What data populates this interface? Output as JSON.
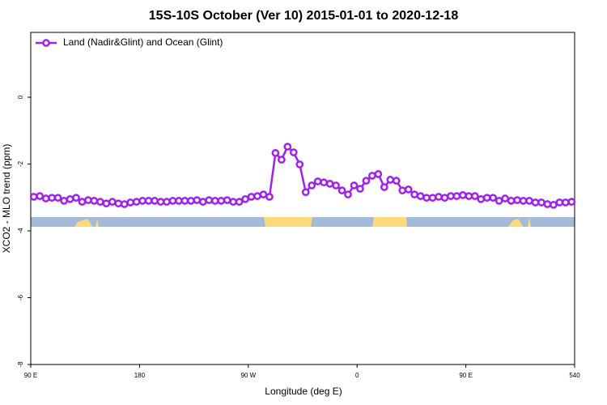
{
  "chart_data": {
    "type": "line",
    "title": "15S-10S October (Ver 10)   2015-01-01 to 2020-12-18",
    "x_label": "Longitude (deg E)",
    "y_label": "XCO2 - MLO trend (ppm)",
    "xlim": [
      90,
      540
    ],
    "xticks": [
      {
        "value": 90,
        "label": "90 E"
      },
      180,
      {
        "value": 270,
        "label": "90 W"
      },
      {
        "value": 360,
        "label": "0"
      },
      {
        "value": 450,
        "label": "90 E"
      },
      540
    ],
    "ylim": [
      -8,
      1.94
    ],
    "yticks": [
      -8,
      -6,
      -4,
      -2,
      0
    ],
    "legend": "top-left",
    "x": [
      92.5,
      97.5,
      102.5,
      107.5,
      112.5,
      117.5,
      122.5,
      127.5,
      132.5,
      137.5,
      142.5,
      147.5,
      152.5,
      157.5,
      162.5,
      167.5,
      172.5,
      177.5,
      182.5,
      187.5,
      192.5,
      197.5,
      202.5,
      207.5,
      212.5,
      217.5,
      222.5,
      227.5,
      232.5,
      237.5,
      242.5,
      247.5,
      252.5,
      257.5,
      262.5,
      267.5,
      272.5,
      277.5,
      282.5,
      287.5,
      292.5,
      297.5,
      302.5,
      307.5,
      312.5,
      317.5,
      322.5,
      327.5,
      332.5,
      337.5,
      342.5,
      347.5,
      352.5,
      357.5,
      362.5,
      367.5,
      372.5,
      377.5,
      382.5,
      387.5,
      392.5,
      397.5,
      402.5,
      407.5,
      412.5,
      417.5,
      422.5,
      427.5,
      432.5,
      437.5,
      442.5,
      447.5,
      452.5,
      457.5,
      462.5,
      467.5,
      472.5,
      477.5,
      482.5,
      487.5,
      492.5,
      497.5,
      502.5,
      507.5,
      512.5,
      517.5,
      522.5,
      527.5,
      532.5,
      537.5
    ],
    "series": [
      {
        "name": "Land (Nadir&Glint) and Ocean (Glint)",
        "color": "#a020f0",
        "values": [
          -2.98,
          -2.96,
          -3.03,
          -3.01,
          -3.01,
          -3.1,
          -3.05,
          -3.01,
          -3.13,
          -3.08,
          -3.1,
          -3.13,
          -3.18,
          -3.13,
          -3.18,
          -3.2,
          -3.15,
          -3.13,
          -3.1,
          -3.1,
          -3.1,
          -3.13,
          -3.13,
          -3.1,
          -3.1,
          -3.1,
          -3.1,
          -3.08,
          -3.13,
          -3.08,
          -3.1,
          -3.1,
          -3.08,
          -3.13,
          -3.13,
          -3.05,
          -2.98,
          -2.96,
          -2.91,
          -2.98,
          -1.67,
          -1.87,
          -1.48,
          -1.65,
          -2.01,
          -2.84,
          -2.64,
          -2.52,
          -2.55,
          -2.59,
          -2.64,
          -2.79,
          -2.91,
          -2.64,
          -2.74,
          -2.5,
          -2.35,
          -2.3,
          -2.69,
          -2.47,
          -2.5,
          -2.79,
          -2.76,
          -2.91,
          -2.96,
          -3.01,
          -3.01,
          -2.98,
          -3.01,
          -2.96,
          -2.96,
          -2.93,
          -2.96,
          -2.96,
          -3.05,
          -3.01,
          -3.01,
          -3.1,
          -3.03,
          -3.1,
          -3.08,
          -3.1,
          -3.1,
          -3.15,
          -3.15,
          -3.2,
          -3.22,
          -3.15,
          -3.15,
          -3.13
        ]
      }
    ]
  }
}
